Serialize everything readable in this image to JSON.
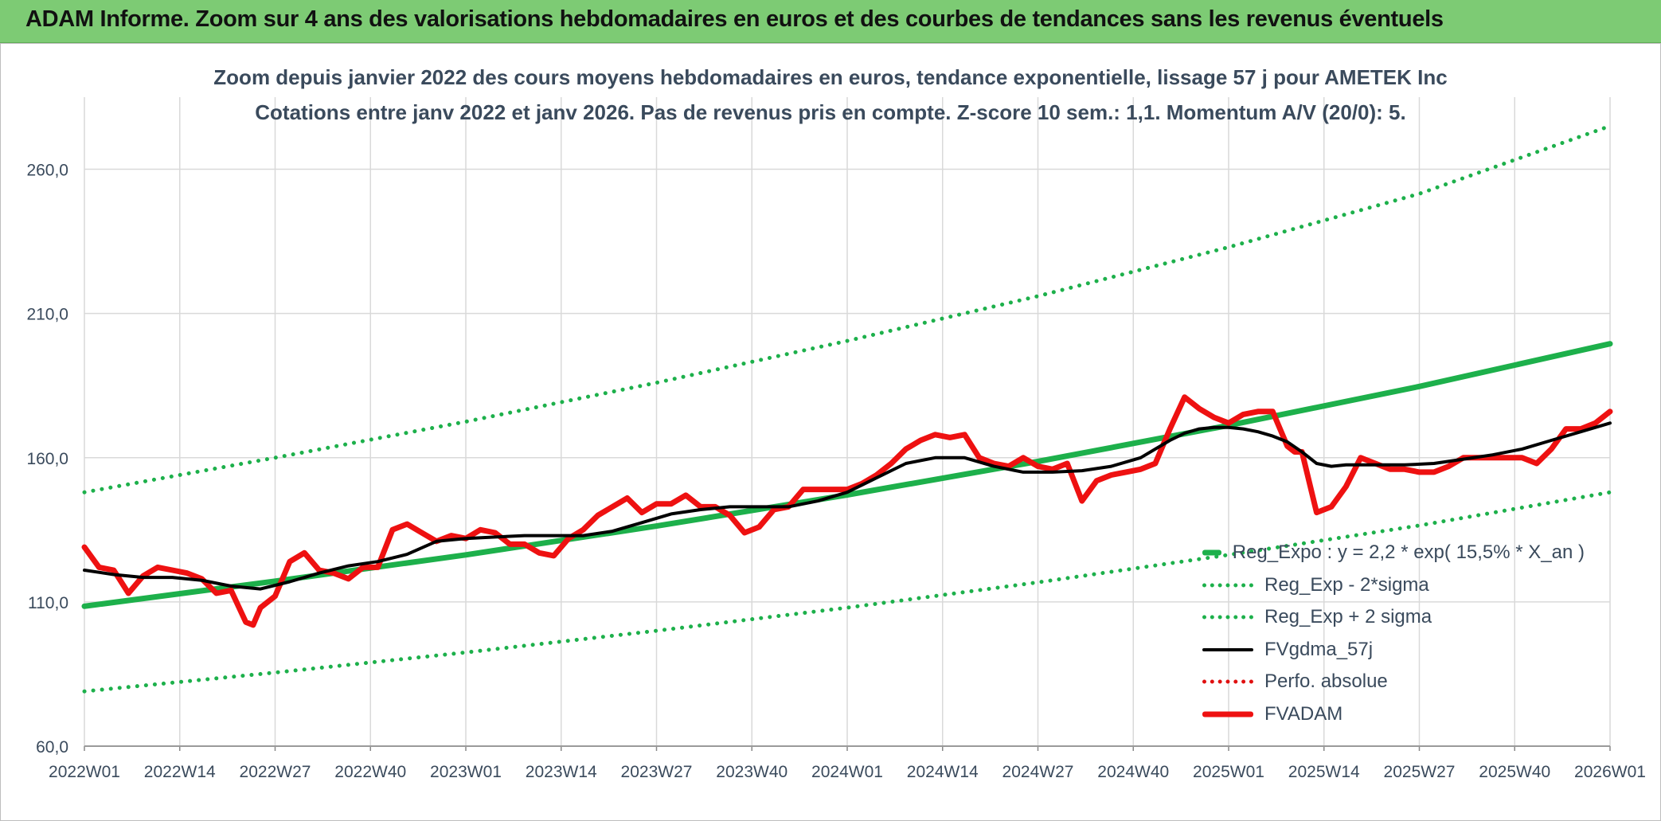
{
  "header": {
    "title": "ADAM Informe. Zoom sur 4 ans des valorisations hebdomadaires en euros et des courbes de tendances sans les revenus éventuels"
  },
  "colors": {
    "header_bg": "#7dcb74",
    "reg_expo": "#1db04b",
    "fvgdma": "#000000",
    "perfo": "#e01010",
    "fvadam": "#ee1111",
    "grid": "#d9d9d9",
    "text": "#3a4a5c"
  },
  "chart_data": {
    "type": "line",
    "title_line1": "Zoom depuis janvier 2022 des cours moyens hebdomadaires en euros, tendance exponentielle, lissage 57 j pour AMETEK Inc",
    "title_line2": "Cotations entre janv 2022 et janv 2026. Pas de revenus pris en compte. Z-score 10 sem.: 1,1. Momentum A/V (20/0): 5.",
    "xlabel": "",
    "ylabel": "",
    "ylim": [
      60,
      285
    ],
    "yticks": [
      60,
      110,
      160,
      210,
      260
    ],
    "ytick_labels": [
      "60,0",
      "110,0",
      "160,0",
      "210,0",
      "260,0"
    ],
    "x_range": [
      0,
      208
    ],
    "xticks": [
      0,
      13,
      26,
      39,
      52,
      65,
      78,
      91,
      104,
      117,
      130,
      143,
      156,
      169,
      182,
      195,
      208
    ],
    "xtick_labels": [
      "2022W01",
      "2022W14",
      "2022W27",
      "2022W40",
      "2023W01",
      "2023W14",
      "2023W27",
      "2023W40",
      "2024W01",
      "2024W14",
      "2024W27",
      "2024W40",
      "2025W01",
      "2025W14",
      "2025W27",
      "2025W40",
      "2026W01"
    ],
    "grid": true,
    "legend_position": "right",
    "series": [
      {
        "name": "Reg_Expo : y = 2,2 * exp( 15,5% *  X_an )",
        "style": "solid-thick",
        "color": "#1db04b",
        "x": [
          0,
          26,
          52,
          78,
          104,
          130,
          156,
          182,
          208
        ],
        "y": [
          108.5,
          117.2,
          126.3,
          136.3,
          147.1,
          158.7,
          171.2,
          184.7,
          199.5
        ]
      },
      {
        "name": "Reg_Exp - 2*sigma",
        "style": "dotted",
        "color": "#1db04b",
        "x": [
          0,
          26,
          52,
          78,
          104,
          130,
          156,
          182,
          208
        ],
        "y": [
          79,
          85.5,
          92.5,
          100,
          108,
          116.8,
          126.3,
          136.5,
          148
        ]
      },
      {
        "name": "Reg_Exp + 2 sigma",
        "style": "dotted",
        "color": "#1db04b",
        "x": [
          0,
          26,
          52,
          78,
          104,
          130,
          156,
          182,
          208
        ],
        "y": [
          148,
          160,
          172.5,
          186,
          200.5,
          216,
          233,
          251.5,
          275
        ]
      },
      {
        "name": "FVgdma_57j",
        "style": "solid",
        "color": "#000000",
        "x": [
          0,
          4,
          8,
          12,
          16,
          20,
          24,
          28,
          32,
          36,
          40,
          44,
          48,
          52,
          56,
          60,
          64,
          68,
          72,
          76,
          80,
          84,
          88,
          92,
          96,
          100,
          104,
          108,
          112,
          116,
          120,
          124,
          128,
          132,
          136,
          140,
          144,
          148,
          150,
          152,
          154,
          156,
          158,
          160,
          162,
          164,
          166,
          168,
          170,
          172,
          176,
          180,
          184,
          188,
          192,
          196,
          200,
          204,
          208
        ],
        "y": [
          121,
          119.5,
          118.5,
          118.5,
          117.5,
          115.5,
          114.5,
          117,
          120,
          122.5,
          124,
          126.5,
          131,
          132,
          132.5,
          133,
          133,
          133,
          134.5,
          137.5,
          140.5,
          142,
          143,
          143,
          143,
          145,
          148,
          153,
          158,
          160,
          160,
          157,
          155,
          155,
          155.5,
          157,
          160,
          166,
          168.5,
          170,
          170.5,
          170.5,
          170,
          169,
          167.5,
          165.5,
          162,
          158,
          157,
          157.5,
          157.5,
          157.5,
          158,
          159.5,
          161,
          163,
          166,
          169,
          172
        ]
      },
      {
        "name": "Perfo. absolue",
        "style": "dotted",
        "color": "#e01010",
        "x": [],
        "y": []
      },
      {
        "name": "FVADAM",
        "style": "solid-thick",
        "color": "#ee1111",
        "x": [
          0,
          2,
          4,
          5,
          6,
          8,
          10,
          12,
          14,
          16,
          18,
          20,
          22,
          23,
          24,
          26,
          28,
          30,
          32,
          34,
          36,
          38,
          40,
          42,
          44,
          46,
          48,
          50,
          52,
          54,
          56,
          58,
          60,
          62,
          64,
          66,
          68,
          70,
          72,
          74,
          76,
          78,
          80,
          82,
          84,
          86,
          88,
          90,
          92,
          94,
          96,
          98,
          100,
          102,
          104,
          106,
          108,
          110,
          112,
          114,
          116,
          118,
          120,
          122,
          124,
          126,
          128,
          130,
          132,
          134,
          136,
          138,
          140,
          142,
          144,
          146,
          148,
          150,
          152,
          154,
          156,
          158,
          160,
          162,
          164,
          165,
          166,
          168,
          170,
          172,
          174,
          176,
          178,
          180,
          182,
          184,
          186,
          188,
          190,
          192,
          194,
          196,
          198,
          200,
          202,
          204,
          206,
          208
        ],
        "y": [
          129,
          122,
          121,
          117,
          113,
          119,
          122,
          121,
          120,
          118,
          113,
          114,
          103,
          102,
          108,
          112,
          124,
          127,
          121,
          120,
          118,
          122,
          122,
          135,
          137,
          134,
          131,
          133,
          132,
          135,
          134,
          130,
          130,
          127,
          126,
          132,
          135,
          140,
          143,
          146,
          141,
          144,
          144,
          147,
          143,
          143,
          140,
          134,
          136,
          142,
          143,
          149,
          149,
          149,
          149,
          151,
          154,
          158,
          163,
          166,
          168,
          167,
          168,
          160,
          158,
          157,
          160,
          157,
          156,
          158,
          145,
          152,
          154,
          155,
          156,
          158,
          170,
          181,
          177,
          174,
          172,
          175,
          176,
          176,
          164,
          162,
          162,
          141,
          143,
          150,
          160,
          158,
          156,
          156,
          155,
          155,
          157,
          160,
          160,
          160,
          160,
          160,
          158,
          163,
          170,
          170,
          172,
          176
        ]
      }
    ]
  }
}
